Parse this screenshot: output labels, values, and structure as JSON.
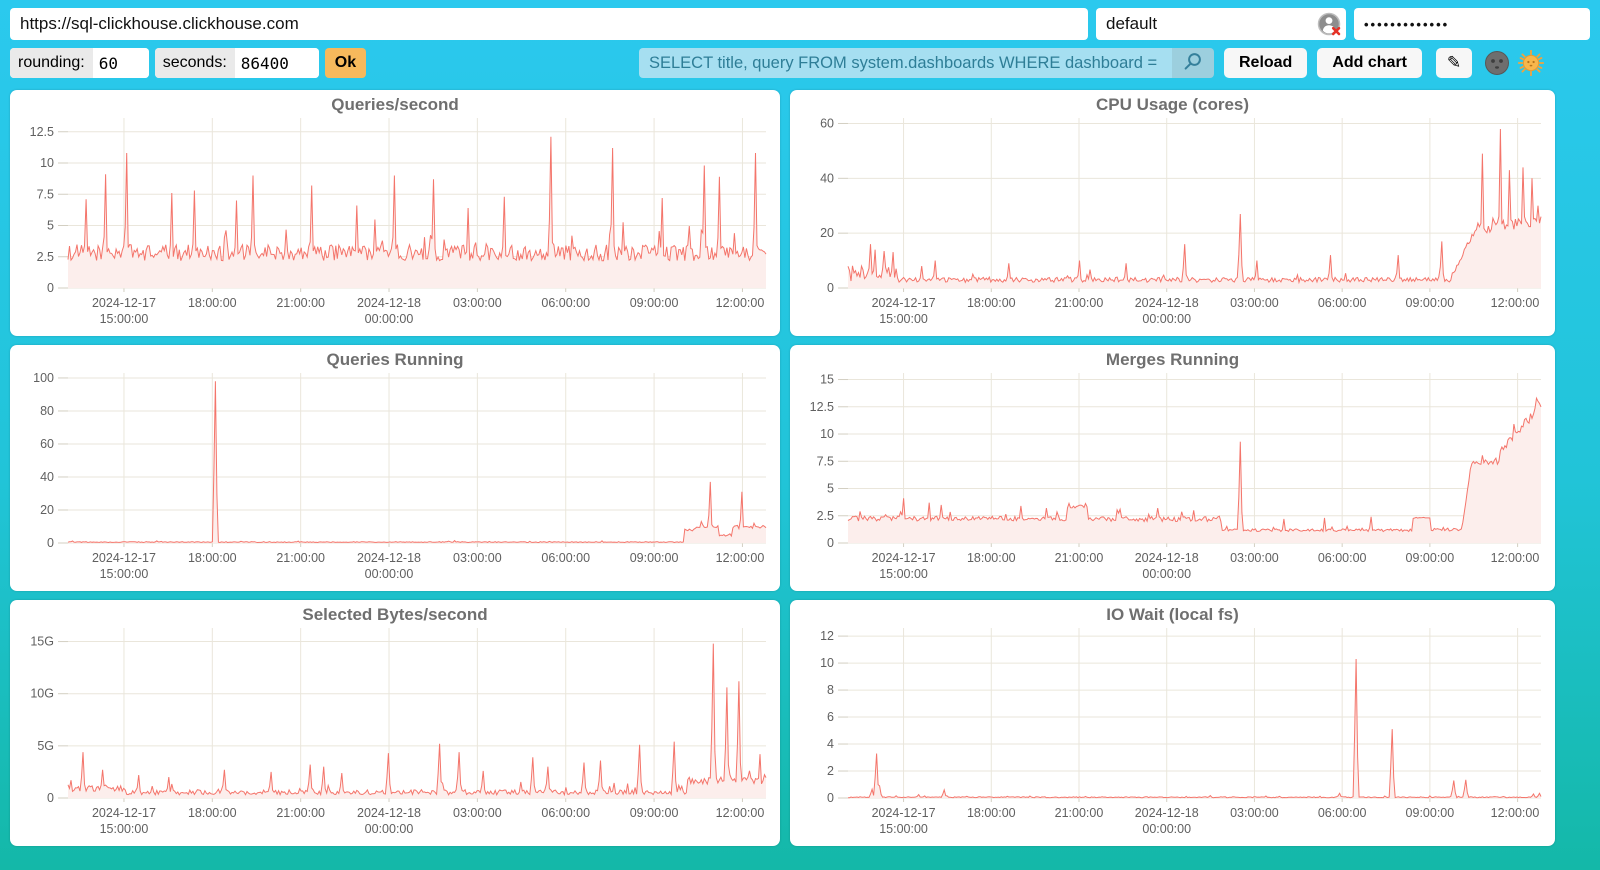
{
  "header": {
    "url_value": "https://sql-clickhouse.clickhouse.com",
    "user_value": "default",
    "password_value": "•••••••••••••",
    "auth_icon": "user-auth-error-icon"
  },
  "toolbar": {
    "rounding_label": "rounding:",
    "rounding_value": "60",
    "seconds_label": "seconds:",
    "seconds_value": "86400",
    "ok_label": "Ok",
    "query_value": "SELECT title, query FROM system.dashboards WHERE dashboard = '",
    "search_icon": "magnifier-icon",
    "reload_label": "Reload",
    "add_chart_label": "Add chart",
    "edit_icon": "✎",
    "moon_icon": "dark-theme-moon-icon",
    "sun_icon": "light-theme-sun-icon"
  },
  "colors": {
    "background_top": "#2BC9EE",
    "background_bottom": "#14B8A8",
    "ok_button": "#F6B95C",
    "query_input_bg": "#A6DFF1",
    "query_text": "#2E7E97",
    "line": "#F4756B",
    "fill": "#FCEEEC",
    "grid": "#EAE6DB",
    "tick": "#D3CFC2",
    "axis_text": "#606060",
    "title_text": "#6F6F6F"
  },
  "chart_data": {
    "type": "area",
    "time_domain_hours": 23.7,
    "x_ticks": [
      {
        "t": 1.9,
        "date": "2024-12-17",
        "label": "15:00:00"
      },
      {
        "t": 4.9,
        "label": "18:00:00"
      },
      {
        "t": 7.9,
        "label": "21:00:00"
      },
      {
        "t": 10.9,
        "date": "2024-12-18",
        "label": "00:00:00"
      },
      {
        "t": 13.9,
        "label": "03:00:00"
      },
      {
        "t": 16.9,
        "label": "06:00:00"
      },
      {
        "t": 19.9,
        "label": "09:00:00"
      },
      {
        "t": 22.9,
        "label": "12:00:00"
      }
    ],
    "charts": [
      {
        "title": "Queries/second",
        "ymax": 13.6,
        "yticks": [
          {
            "v": 0,
            "label": "0"
          },
          {
            "v": 2.5,
            "label": "2.5"
          },
          {
            "v": 5,
            "label": "5"
          },
          {
            "v": 7.5,
            "label": "7.5"
          },
          {
            "v": 10,
            "label": "10"
          },
          {
            "v": 12.5,
            "label": "12.5"
          }
        ],
        "segments": [
          {
            "from": 0,
            "to": 23.7,
            "base": 2.7,
            "noise": 1.3
          }
        ],
        "spikes": [
          [
            0.6,
            7.1
          ],
          [
            1.3,
            9.1
          ],
          [
            2.0,
            10.8
          ],
          [
            3.5,
            7.6
          ],
          [
            4.3,
            7.8
          ],
          [
            5.7,
            7.0
          ],
          [
            6.3,
            9.0
          ],
          [
            8.3,
            8.2
          ],
          [
            9.8,
            6.6
          ],
          [
            11.1,
            9.0
          ],
          [
            12.4,
            8.7
          ],
          [
            13.6,
            6.4
          ],
          [
            14.8,
            7.3
          ],
          [
            16.4,
            12.1
          ],
          [
            18.5,
            11.2
          ],
          [
            20.2,
            7.2
          ],
          [
            21.6,
            9.8
          ],
          [
            22.1,
            8.9
          ],
          [
            23.35,
            10.8
          ]
        ]
      },
      {
        "title": "CPU Usage (cores)",
        "ymax": 62,
        "yticks": [
          {
            "v": 0,
            "label": "0"
          },
          {
            "v": 20,
            "label": "20"
          },
          {
            "v": 40,
            "label": "40"
          },
          {
            "v": 60,
            "label": "60"
          }
        ],
        "segments": [
          {
            "from": 0,
            "to": 1.7,
            "base": 4.5,
            "noise": 6
          },
          {
            "from": 1.7,
            "to": 20.6,
            "base": 2.8,
            "noise": 1.8
          },
          {
            "from": 20.6,
            "to": 21.4,
            "base": 3,
            "base2": 20,
            "noise": 2
          },
          {
            "from": 21.4,
            "to": 23.7,
            "base": 21,
            "base2": 24,
            "noise": 4.5
          }
        ],
        "spikes": [
          [
            0.75,
            16
          ],
          [
            0.95,
            14
          ],
          [
            1.25,
            13.5
          ],
          [
            2.5,
            8
          ],
          [
            3.0,
            10
          ],
          [
            5.5,
            9
          ],
          [
            7.9,
            10
          ],
          [
            9.5,
            9
          ],
          [
            11.5,
            16
          ],
          [
            13.4,
            27
          ],
          [
            14.0,
            10
          ],
          [
            16.5,
            12
          ],
          [
            18.8,
            12
          ],
          [
            20.3,
            17
          ],
          [
            21.7,
            49
          ],
          [
            22.3,
            58
          ],
          [
            22.6,
            43
          ],
          [
            23.1,
            44
          ],
          [
            23.4,
            40
          ],
          [
            23.6,
            30
          ]
        ]
      },
      {
        "title": "Queries Running",
        "ymax": 103,
        "yticks": [
          {
            "v": 0,
            "label": "0"
          },
          {
            "v": 20,
            "label": "20"
          },
          {
            "v": 40,
            "label": "40"
          },
          {
            "v": 60,
            "label": "60"
          },
          {
            "v": 80,
            "label": "80"
          },
          {
            "v": 100,
            "label": "100"
          }
        ],
        "segments": [
          {
            "from": 0,
            "to": 20.9,
            "base": 0.5,
            "noise": 0.5
          },
          {
            "from": 20.9,
            "to": 21.3,
            "base": 8,
            "noise": 2
          },
          {
            "from": 21.3,
            "to": 22.1,
            "base": 10,
            "noise": 2
          },
          {
            "from": 22.1,
            "to": 22.55,
            "base": 4.5,
            "noise": 1
          },
          {
            "from": 22.55,
            "to": 23.7,
            "base": 9.5,
            "noise": 2
          }
        ],
        "spikes": [
          [
            5.0,
            98
          ],
          [
            21.5,
            13
          ],
          [
            21.8,
            37
          ],
          [
            22.9,
            31
          ],
          [
            23.3,
            12
          ]
        ]
      },
      {
        "title": "Merges Running",
        "ymax": 15.6,
        "yticks": [
          {
            "v": 0,
            "label": "0"
          },
          {
            "v": 2.5,
            "label": "2.5"
          },
          {
            "v": 5,
            "label": "5"
          },
          {
            "v": 7.5,
            "label": "7.5"
          },
          {
            "v": 10,
            "label": "10"
          },
          {
            "v": 12.5,
            "label": "12.5"
          },
          {
            "v": 15,
            "label": "15"
          }
        ],
        "segments": [
          {
            "from": 0,
            "to": 7.5,
            "base": 2.2,
            "noise": 0.45
          },
          {
            "from": 7.5,
            "to": 8.2,
            "base": 3.3,
            "noise": 0.3
          },
          {
            "from": 8.2,
            "to": 12.8,
            "base": 2.15,
            "noise": 0.45
          },
          {
            "from": 12.8,
            "to": 19.3,
            "base": 1.15,
            "noise": 0.25
          },
          {
            "from": 19.3,
            "to": 19.9,
            "base": 2.3,
            "noise": 0.1
          },
          {
            "from": 19.9,
            "to": 21.0,
            "base": 1.2,
            "noise": 0.25
          },
          {
            "from": 21.0,
            "to": 21.3,
            "base": 1.2,
            "base2": 7,
            "noise": 0.3
          },
          {
            "from": 21.3,
            "to": 22.3,
            "base": 7.4,
            "noise": 0.5
          },
          {
            "from": 22.3,
            "to": 23.7,
            "base": 8.2,
            "base2": 12.6,
            "noise": 0.8
          }
        ],
        "spikes": [
          [
            0.4,
            2.9
          ],
          [
            1.9,
            4.1
          ],
          [
            2.8,
            3.7
          ],
          [
            3.2,
            3.5
          ],
          [
            5.9,
            3.4
          ],
          [
            6.8,
            3.2
          ],
          [
            9.3,
            3.1
          ],
          [
            10.6,
            3.2
          ],
          [
            11.8,
            3.0
          ],
          [
            13.4,
            9.3
          ],
          [
            14.9,
            2.2
          ],
          [
            16.3,
            2.3
          ],
          [
            17.9,
            2.4
          ],
          [
            23.6,
            13.0
          ]
        ]
      },
      {
        "title": "Selected Bytes/second",
        "ymax": 16.3,
        "unit": "G",
        "yticks": [
          {
            "v": 0,
            "label": "0"
          },
          {
            "v": 5,
            "label": "5G"
          },
          {
            "v": 10,
            "label": "10G"
          },
          {
            "v": 15,
            "label": "15G"
          }
        ],
        "segments": [
          {
            "from": 0,
            "to": 1.9,
            "base": 0.9,
            "noise": 0.7
          },
          {
            "from": 1.9,
            "to": 21.0,
            "base": 0.5,
            "noise": 0.5
          },
          {
            "from": 21.0,
            "to": 23.7,
            "base": 1.6,
            "noise": 0.7
          }
        ],
        "spikes": [
          [
            0.5,
            4.4
          ],
          [
            1.2,
            2.7
          ],
          [
            2.4,
            2.2
          ],
          [
            3.4,
            2.0
          ],
          [
            5.3,
            2.7
          ],
          [
            6.9,
            2.5
          ],
          [
            8.2,
            3.2
          ],
          [
            8.7,
            3.0
          ],
          [
            9.3,
            2.4
          ],
          [
            10.9,
            4.3
          ],
          [
            12.6,
            5.2
          ],
          [
            13.3,
            4.4
          ],
          [
            14.1,
            2.6
          ],
          [
            15.8,
            3.9
          ],
          [
            16.3,
            3.0
          ],
          [
            17.5,
            3.4
          ],
          [
            18.1,
            3.6
          ],
          [
            19.4,
            5.1
          ],
          [
            20.6,
            5.4
          ],
          [
            21.9,
            14.8
          ],
          [
            22.35,
            10.6
          ],
          [
            22.8,
            11.2
          ],
          [
            23.5,
            4.2
          ]
        ]
      },
      {
        "title": "IO Wait (local fs)",
        "ymax": 12.6,
        "yticks": [
          {
            "v": 0,
            "label": "0"
          },
          {
            "v": 2,
            "label": "2"
          },
          {
            "v": 4,
            "label": "4"
          },
          {
            "v": 6,
            "label": "6"
          },
          {
            "v": 8,
            "label": "8"
          },
          {
            "v": 10,
            "label": "10"
          },
          {
            "v": 12,
            "label": "12"
          }
        ],
        "segments": [
          {
            "from": 0,
            "to": 23.7,
            "base": 0.05,
            "noise": 0.07
          }
        ],
        "spikes": [
          [
            0.8,
            0.65
          ],
          [
            1.0,
            3.3
          ],
          [
            1.1,
            0.9
          ],
          [
            2.4,
            0.25
          ],
          [
            3.3,
            0.6
          ],
          [
            8.1,
            0.12
          ],
          [
            12.4,
            0.18
          ],
          [
            14.3,
            0.15
          ],
          [
            16.8,
            0.35
          ],
          [
            17.4,
            10.3
          ],
          [
            18.6,
            5.1
          ],
          [
            20.7,
            1.3
          ],
          [
            21.15,
            1.35
          ],
          [
            23.45,
            0.3
          ],
          [
            23.65,
            0.35
          ]
        ]
      }
    ]
  }
}
